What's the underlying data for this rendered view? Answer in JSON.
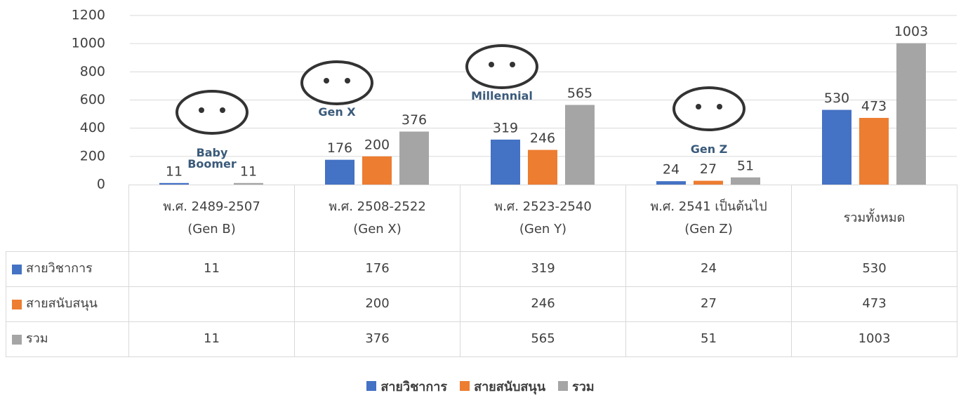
{
  "chart_data": {
    "type": "bar",
    "categories": [
      "พ.ศ. 2489-2507\n(Gen B)",
      "พ.ศ. 2508-2522\n(Gen X)",
      "พ.ศ. 2523-2540\n(Gen Y)",
      "พ.ศ. 2541 เป็นต้นไป\n(Gen Z)",
      "รวมทั้งหมด"
    ],
    "series": [
      {
        "name": "สายวิชาการ",
        "color": "#4472c4",
        "values": [
          11,
          176,
          319,
          24,
          530
        ]
      },
      {
        "name": "สายสนับสนุน",
        "color": "#ed7d31",
        "values": [
          null,
          200,
          246,
          27,
          473
        ]
      },
      {
        "name": "รวม",
        "color": "#a5a5a5",
        "values": [
          11,
          376,
          565,
          51,
          1003
        ]
      }
    ],
    "ylim": [
      0,
      1200
    ],
    "yticks": [
      0,
      200,
      400,
      600,
      800,
      1000,
      1200
    ],
    "grid": true,
    "icons": [
      "Baby\nBoomer",
      "Gen X",
      "Millennial",
      "Gen Z"
    ]
  }
}
